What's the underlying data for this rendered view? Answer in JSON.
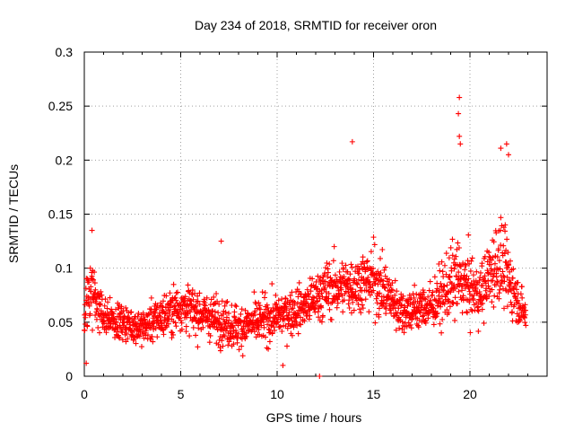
{
  "chart_data": {
    "type": "scatter",
    "title": "Day 234 of 2018, SRMTID for receiver oron",
    "xlabel": "GPS time / hours",
    "ylabel": "SRMTID / TECUs",
    "xlim": [
      0,
      24
    ],
    "ylim": [
      0,
      0.3
    ],
    "xticks": [
      0,
      5,
      10,
      15,
      20
    ],
    "xtick_labels": [
      "0",
      "5",
      "10",
      "15",
      "20"
    ],
    "yticks": [
      0,
      0.05,
      0.1,
      0.15,
      0.2,
      0.25,
      0.3
    ],
    "ytick_labels": [
      "0",
      "0.05",
      "0.1",
      "0.15",
      "0.2",
      "0.25",
      "0.3"
    ],
    "grid": true,
    "marker": "+",
    "color": "#ff0000",
    "series": [
      {
        "name": "SRMTID",
        "generated_from_trend": true,
        "trend": [
          {
            "t": 0.0,
            "mean": 0.055,
            "spread": 0.02
          },
          {
            "t": 0.3,
            "mean": 0.08,
            "spread": 0.03
          },
          {
            "t": 1.0,
            "mean": 0.055,
            "spread": 0.015
          },
          {
            "t": 3.0,
            "mean": 0.045,
            "spread": 0.015
          },
          {
            "t": 4.0,
            "mean": 0.055,
            "spread": 0.02
          },
          {
            "t": 5.0,
            "mean": 0.065,
            "spread": 0.02
          },
          {
            "t": 6.5,
            "mean": 0.055,
            "spread": 0.02
          },
          {
            "t": 8.0,
            "mean": 0.045,
            "spread": 0.02
          },
          {
            "t": 10.0,
            "mean": 0.055,
            "spread": 0.02
          },
          {
            "t": 11.5,
            "mean": 0.065,
            "spread": 0.02
          },
          {
            "t": 12.5,
            "mean": 0.08,
            "spread": 0.025
          },
          {
            "t": 14.0,
            "mean": 0.085,
            "spread": 0.025
          },
          {
            "t": 15.0,
            "mean": 0.09,
            "spread": 0.03
          },
          {
            "t": 16.5,
            "mean": 0.06,
            "spread": 0.02
          },
          {
            "t": 18.0,
            "mean": 0.065,
            "spread": 0.02
          },
          {
            "t": 19.3,
            "mean": 0.09,
            "spread": 0.035
          },
          {
            "t": 20.5,
            "mean": 0.075,
            "spread": 0.025
          },
          {
            "t": 21.5,
            "mean": 0.11,
            "spread": 0.04
          },
          {
            "t": 22.5,
            "mean": 0.07,
            "spread": 0.02
          },
          {
            "t": 22.9,
            "mean": 0.055,
            "spread": 0.015
          }
        ],
        "notable_points": [
          {
            "x": 19.45,
            "y": 0.258
          },
          {
            "x": 19.4,
            "y": 0.243
          },
          {
            "x": 19.45,
            "y": 0.222
          },
          {
            "x": 19.5,
            "y": 0.215
          },
          {
            "x": 13.9,
            "y": 0.217
          },
          {
            "x": 21.9,
            "y": 0.215
          },
          {
            "x": 21.6,
            "y": 0.211
          },
          {
            "x": 22.0,
            "y": 0.205
          },
          {
            "x": 0.4,
            "y": 0.135
          },
          {
            "x": 7.1,
            "y": 0.125
          },
          {
            "x": 0.1,
            "y": 0.012
          },
          {
            "x": 10.3,
            "y": 0.01
          },
          {
            "x": 12.2,
            "y": 0.0
          }
        ]
      }
    ]
  }
}
